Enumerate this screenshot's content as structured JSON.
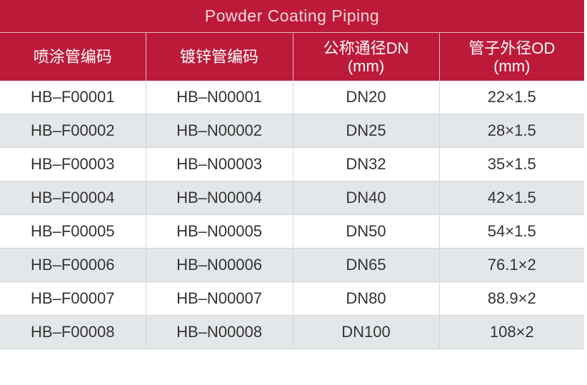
{
  "title": "Powder Coating Piping",
  "table": {
    "header": [
      [
        "喷涂管编码"
      ],
      [
        "镀锌管编码"
      ],
      [
        "公称通径DN",
        "(mm)"
      ],
      [
        "管子外径OD",
        "(mm)"
      ]
    ],
    "rows": [
      [
        "HB–F00001",
        "HB–N00001",
        "DN20",
        "22×1.5"
      ],
      [
        "HB–F00002",
        "HB–N00002",
        "DN25",
        "28×1.5"
      ],
      [
        "HB–F00003",
        "HB–N00003",
        "DN32",
        "35×1.5"
      ],
      [
        "HB–F00004",
        "HB–N00004",
        "DN40",
        "42×1.5"
      ],
      [
        "HB–F00005",
        "HB–N00005",
        "DN50",
        "54×1.5"
      ],
      [
        "HB–F00006",
        "HB–N00006",
        "DN65",
        "76.1×2"
      ],
      [
        "HB–F00007",
        "HB–N00007",
        "DN80",
        "88.9×2"
      ],
      [
        "HB–F00008",
        "HB–N00008",
        "DN100",
        "108×2"
      ]
    ]
  }
}
